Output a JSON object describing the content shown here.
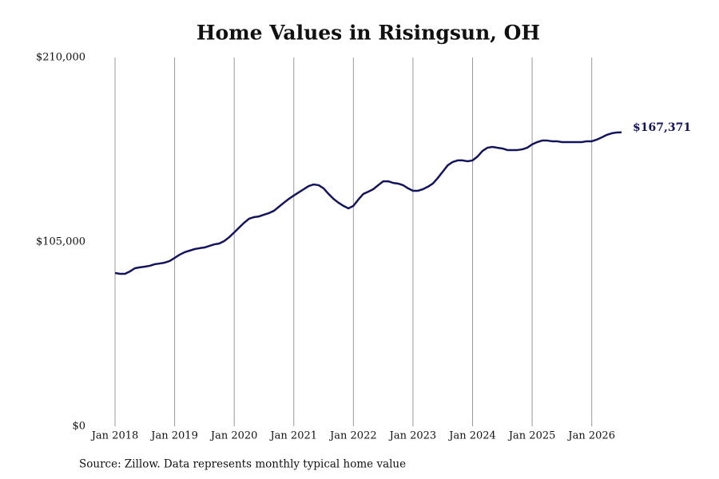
{
  "chart_data": {
    "type": "line",
    "title": "Home Values in Risingsun, OH",
    "source": "Source: Zillow. Data represents monthly typical home value",
    "x": [
      "2018-01",
      "2018-02",
      "2018-03",
      "2018-04",
      "2018-05",
      "2018-06",
      "2018-07",
      "2018-08",
      "2018-09",
      "2018-10",
      "2018-11",
      "2018-12",
      "2019-01",
      "2019-02",
      "2019-03",
      "2019-04",
      "2019-05",
      "2019-06",
      "2019-07",
      "2019-08",
      "2019-09",
      "2019-10",
      "2019-11",
      "2019-12",
      "2020-01",
      "2020-02",
      "2020-03",
      "2020-04",
      "2020-05",
      "2020-06",
      "2020-07",
      "2020-08",
      "2020-09",
      "2020-10",
      "2020-11",
      "2020-12",
      "2021-01",
      "2021-02",
      "2021-03",
      "2021-04",
      "2021-05",
      "2021-06",
      "2021-07",
      "2021-08",
      "2021-09",
      "2021-10",
      "2021-11",
      "2021-12",
      "2022-01",
      "2022-02",
      "2022-03",
      "2022-04",
      "2022-05",
      "2022-06",
      "2022-07",
      "2022-08",
      "2022-09",
      "2022-10",
      "2022-11",
      "2022-12",
      "2023-01",
      "2023-02",
      "2023-03",
      "2023-04",
      "2023-05",
      "2023-06",
      "2023-07",
      "2023-08",
      "2023-09",
      "2023-10",
      "2023-11",
      "2023-12",
      "2024-01",
      "2024-02",
      "2024-03",
      "2024-04",
      "2024-05",
      "2024-06",
      "2024-07",
      "2024-08",
      "2024-09",
      "2024-10",
      "2024-11",
      "2024-12",
      "2025-01",
      "2025-02",
      "2025-03",
      "2025-04",
      "2025-05",
      "2025-06",
      "2025-07",
      "2025-08",
      "2025-09",
      "2025-10",
      "2025-11",
      "2025-12",
      "2026-01",
      "2026-02",
      "2026-03",
      "2026-04",
      "2026-05",
      "2026-06",
      "2026-07"
    ],
    "series": [
      {
        "name": "Home value",
        "color": "#14145e",
        "values": [
          87300,
          86800,
          86800,
          88200,
          90000,
          90500,
          90900,
          91400,
          92300,
          92700,
          93200,
          94100,
          95900,
          97700,
          99100,
          100000,
          100900,
          101400,
          101800,
          102700,
          103600,
          104100,
          105500,
          107700,
          110400,
          113200,
          115900,
          118200,
          119100,
          119500,
          120500,
          121400,
          122700,
          125000,
          127300,
          129500,
          131400,
          133200,
          135000,
          136800,
          137700,
          137300,
          135500,
          132300,
          129500,
          127300,
          125500,
          124100,
          125500,
          129100,
          132300,
          133600,
          135000,
          137300,
          139500,
          139500,
          138600,
          138200,
          137300,
          135500,
          134100,
          134100,
          135000,
          136400,
          138200,
          141400,
          145000,
          148600,
          150500,
          151400,
          151400,
          150900,
          151400,
          153600,
          156800,
          158600,
          159100,
          158600,
          158200,
          157300,
          157300,
          157300,
          157700,
          158600,
          160500,
          161800,
          162700,
          162700,
          162300,
          162300,
          161800,
          161800,
          161800,
          161800,
          161800,
          162300,
          162300,
          163200,
          164500,
          165900,
          166800,
          167300,
          167371
        ],
        "value_labels": [
          null,
          null,
          null,
          null,
          null,
          null,
          null,
          null,
          null,
          null,
          null,
          null,
          null,
          null,
          null,
          null,
          null,
          null,
          null,
          null,
          null,
          null,
          null,
          null,
          null,
          null,
          null,
          null,
          null,
          null,
          null,
          null,
          null,
          null,
          null,
          null,
          null,
          null,
          null,
          null,
          null,
          null,
          null,
          null,
          null,
          null,
          null,
          null,
          null,
          null,
          null,
          null,
          null,
          null,
          null,
          null,
          null,
          null,
          null,
          null,
          null,
          null,
          null,
          null,
          null,
          null,
          null,
          null,
          null,
          null,
          null,
          null,
          null,
          null,
          null,
          null,
          null,
          null,
          null,
          null,
          null,
          null,
          null,
          null,
          null,
          null,
          null,
          null,
          null,
          null,
          null,
          null,
          null,
          null,
          null,
          null,
          null,
          null,
          null,
          null,
          null,
          null,
          "$167,371"
        ]
      }
    ],
    "xlim": [
      "2018-01",
      "2026-07"
    ],
    "xticks": [
      {
        "value": "2018-01",
        "label": "Jan 2018"
      },
      {
        "value": "2019-01",
        "label": "Jan 2019"
      },
      {
        "value": "2020-01",
        "label": "Jan 2020"
      },
      {
        "value": "2021-01",
        "label": "Jan 2021"
      },
      {
        "value": "2022-01",
        "label": "Jan 2022"
      },
      {
        "value": "2023-01",
        "label": "Jan 2023"
      },
      {
        "value": "2024-01",
        "label": "Jan 2024"
      },
      {
        "value": "2025-01",
        "label": "Jan 2025"
      },
      {
        "value": "2026-01",
        "label": "Jan 2026"
      }
    ],
    "ylim": [
      0,
      210000
    ],
    "yticks": [
      {
        "value": 0,
        "label": "$0"
      },
      {
        "value": 105000,
        "label": "$105,000"
      },
      {
        "value": 210000,
        "label": "$210,000"
      }
    ],
    "grid": "x"
  }
}
